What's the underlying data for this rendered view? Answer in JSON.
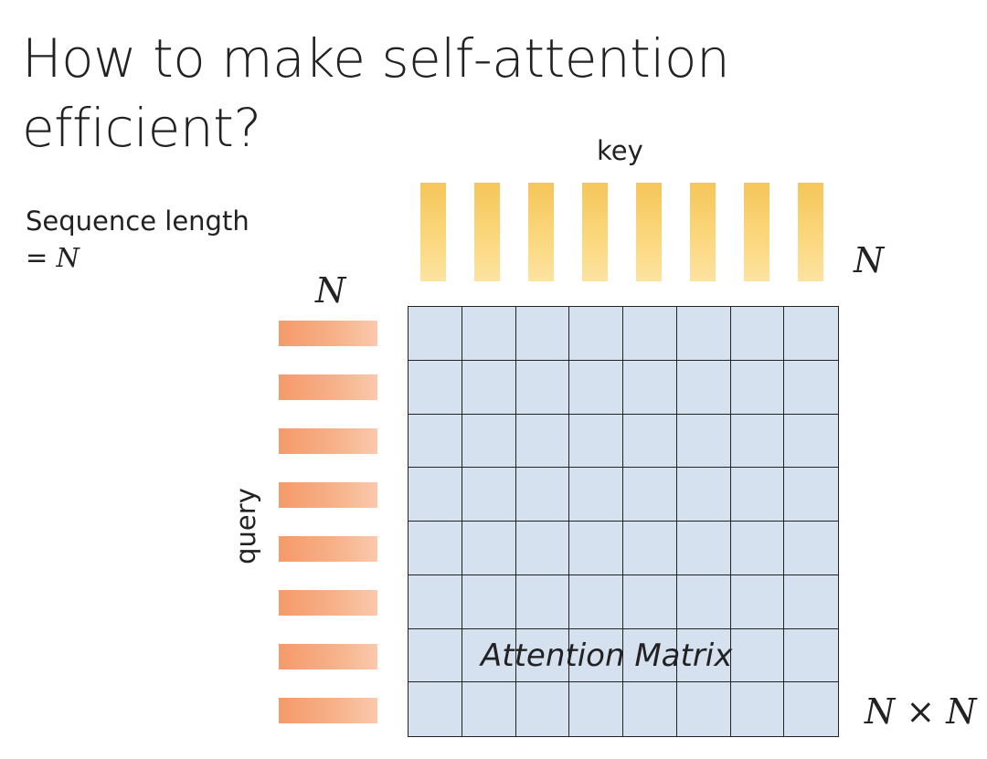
{
  "title": {
    "line1": "How to make self-attention",
    "line2": "efficient?"
  },
  "sequence": {
    "label": "Sequence length",
    "equals": "= ",
    "symbol": "N"
  },
  "key": {
    "label": "key",
    "count_label": "N",
    "color": "#f5c65a"
  },
  "query": {
    "label": "query",
    "count_label": "N",
    "color": "#f59a6a"
  },
  "matrix": {
    "label": "Attention Matrix",
    "size_label": "N × N",
    "color": "#d6e1f0"
  }
}
